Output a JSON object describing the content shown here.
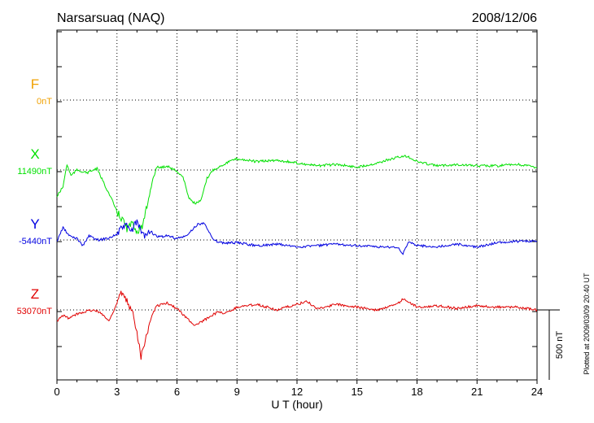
{
  "chart_data": {
    "type": "line",
    "title": "Narsarsuaq (NAQ)",
    "date": "2008/12/06",
    "xlabel": "U T (hour)",
    "xlim": [
      0,
      24
    ],
    "xticks": [
      "0",
      "3",
      "6",
      "9",
      "12",
      "15",
      "18",
      "21",
      "24"
    ],
    "grid": true,
    "scale_bar_label": "500 nT",
    "plotted_note": "Plotted at 2009/03/09 20:40 UT",
    "series": [
      {
        "name": "F",
        "baseline_label": "0nT",
        "color": "#f0a000",
        "hours": [],
        "values_nT": []
      },
      {
        "name": "X",
        "baseline_label": "11490nT",
        "color": "#00e000",
        "hours": [
          0,
          0.3,
          0.5,
          0.7,
          1.0,
          1.5,
          2.0,
          2.5,
          2.8,
          3.0,
          3.3,
          3.5,
          3.8,
          4.0,
          4.3,
          4.5,
          4.8,
          5.0,
          5.3,
          5.5,
          6.0,
          6.3,
          6.6,
          6.9,
          7.2,
          7.5,
          7.8,
          8.2,
          8.6,
          9.0,
          10,
          11,
          12,
          13,
          14,
          15,
          16,
          17,
          17.5,
          18,
          19,
          20,
          21,
          22,
          23,
          24
        ],
        "values_nT": [
          -190,
          -120,
          40,
          -40,
          0,
          -20,
          10,
          -140,
          -230,
          -300,
          -360,
          -420,
          -380,
          -440,
          -400,
          -260,
          -60,
          20,
          20,
          30,
          -10,
          -50,
          -200,
          -240,
          -220,
          -60,
          0,
          30,
          60,
          80,
          60,
          70,
          50,
          30,
          40,
          20,
          50,
          90,
          100,
          60,
          30,
          40,
          30,
          30,
          40,
          20
        ]
      },
      {
        "name": "Y",
        "baseline_label": "-5440nT",
        "color": "#0000e0",
        "hours": [
          0,
          0.3,
          0.6,
          1.0,
          1.3,
          1.6,
          2.0,
          2.5,
          3.0,
          3.4,
          3.7,
          4.0,
          4.3,
          4.7,
          5.0,
          5.5,
          6.0,
          6.5,
          7.0,
          7.4,
          7.8,
          8.2,
          8.6,
          9.0,
          10,
          11,
          12,
          13,
          14,
          15,
          16,
          17,
          17.3,
          17.6,
          18,
          19,
          20,
          21,
          22,
          23,
          24
        ],
        "values_nT": [
          -10,
          90,
          30,
          10,
          -40,
          30,
          0,
          10,
          40,
          110,
          60,
          130,
          30,
          60,
          20,
          30,
          10,
          30,
          110,
          120,
          0,
          -20,
          -20,
          -20,
          -40,
          -30,
          -50,
          -40,
          -30,
          -40,
          -50,
          -50,
          -100,
          -10,
          -40,
          -50,
          -30,
          -50,
          -20,
          -10,
          -10
        ]
      },
      {
        "name": "Z",
        "baseline_label": "53070nT",
        "color": "#e00000",
        "hours": [
          0,
          0.3,
          0.6,
          1.0,
          1.4,
          1.8,
          2.2,
          2.6,
          3.0,
          3.2,
          3.5,
          3.8,
          4.0,
          4.2,
          4.5,
          4.8,
          5.0,
          5.5,
          6.0,
          6.5,
          6.9,
          7.3,
          7.7,
          8.0,
          8.5,
          9.0,
          10,
          11,
          12,
          12.5,
          13,
          14,
          15,
          16,
          17,
          17.3,
          18,
          19,
          20,
          21,
          22,
          23,
          24
        ],
        "values_nT": [
          -80,
          -40,
          -60,
          -30,
          -10,
          0,
          -20,
          -80,
          50,
          120,
          60,
          -30,
          -150,
          -330,
          -160,
          -20,
          30,
          50,
          10,
          -60,
          -110,
          -80,
          -40,
          -20,
          -20,
          20,
          40,
          0,
          40,
          60,
          10,
          40,
          20,
          0,
          40,
          80,
          20,
          30,
          10,
          30,
          20,
          20,
          0
        ]
      }
    ]
  }
}
